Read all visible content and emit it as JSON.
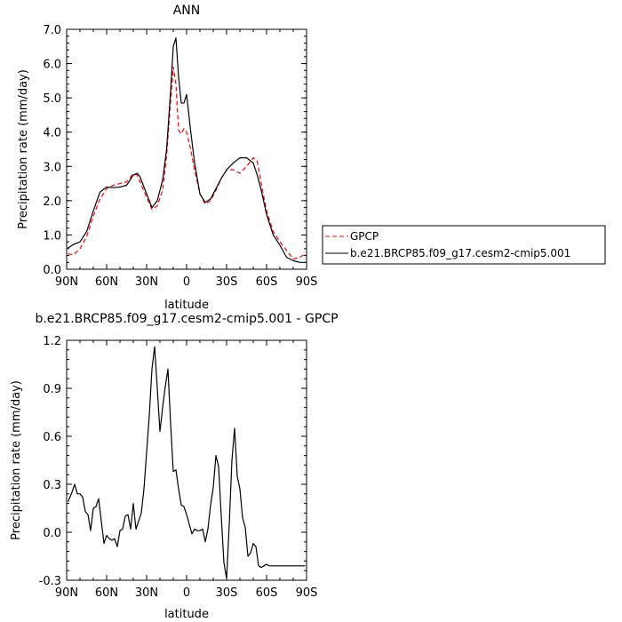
{
  "chart_data": [
    {
      "type": "line",
      "title": "ANN",
      "xlabel": "latitude",
      "ylabel": "Precipitation rate (mm/day)",
      "x_axis": "latitude",
      "xlim": [
        90,
        -90
      ],
      "ylim": [
        0,
        7
      ],
      "xtick_values": [
        90,
        60,
        30,
        0,
        -30,
        -60,
        -90
      ],
      "xtick_labels": [
        "90N",
        "60N",
        "30N",
        "0",
        "30S",
        "60S",
        "90S"
      ],
      "ytick_values": [
        0,
        1,
        2,
        3,
        4,
        5,
        6,
        7
      ],
      "ytick_labels": [
        "0.0",
        "1.0",
        "2.0",
        "3.0",
        "4.0",
        "5.0",
        "6.0",
        "7.0"
      ],
      "legend": {
        "placement": "right"
      },
      "series": [
        {
          "name": "GPCP",
          "color": "#ff0000",
          "dash": "dashed",
          "x": [
            89,
            85,
            80,
            75,
            70,
            65,
            60,
            55,
            50,
            45,
            40,
            37,
            35,
            30,
            26,
            22,
            18,
            15,
            12,
            10,
            8,
            6,
            4,
            2,
            0,
            -3,
            -6,
            -10,
            -14,
            -18,
            -22,
            -26,
            -30,
            -35,
            -40,
            -45,
            -50,
            -53,
            -56,
            -60,
            -65,
            -70,
            -75,
            -80,
            -85,
            -89
          ],
          "y": [
            0.45,
            0.42,
            0.6,
            0.95,
            1.55,
            2.05,
            2.35,
            2.45,
            2.5,
            2.55,
            2.78,
            2.75,
            2.55,
            2.1,
            1.75,
            1.85,
            2.3,
            3.3,
            4.9,
            5.9,
            5.4,
            4.05,
            3.95,
            4.1,
            4.0,
            3.5,
            2.9,
            2.2,
            1.9,
            2.0,
            2.3,
            2.65,
            2.9,
            2.9,
            2.8,
            3.0,
            3.25,
            3.15,
            2.5,
            1.7,
            1.1,
            0.8,
            0.55,
            0.3,
            0.35,
            0.45
          ]
        },
        {
          "name": "b.e21.BRCP85.f09_g17.cesm2-cmip5.001",
          "color": "#000000",
          "dash": "solid",
          "x": [
            89,
            85,
            80,
            75,
            70,
            65,
            60,
            55,
            50,
            45,
            40,
            37,
            35,
            30,
            26,
            22,
            18,
            15,
            12,
            10,
            8,
            6,
            4,
            2,
            0,
            -3,
            -6,
            -10,
            -14,
            -18,
            -22,
            -26,
            -30,
            -35,
            -40,
            -45,
            -50,
            -53,
            -56,
            -60,
            -65,
            -70,
            -75,
            -80,
            -85,
            -89
          ],
          "y": [
            0.62,
            0.72,
            0.8,
            1.1,
            1.7,
            2.25,
            2.4,
            2.38,
            2.4,
            2.45,
            2.75,
            2.8,
            2.7,
            2.2,
            1.8,
            2.0,
            2.6,
            3.5,
            5.2,
            6.5,
            6.75,
            5.6,
            4.85,
            4.85,
            5.1,
            4.05,
            3.1,
            2.2,
            1.95,
            2.05,
            2.35,
            2.65,
            2.9,
            3.1,
            3.25,
            3.25,
            3.1,
            2.75,
            2.3,
            1.6,
            1.0,
            0.7,
            0.35,
            0.25,
            0.2,
            0.2
          ]
        }
      ]
    },
    {
      "type": "line",
      "title": "b.e21.BRCP85.f09_g17.cesm2-cmip5.001 - GPCP",
      "xlabel": "latitude",
      "ylabel": "Precipitation rate (mm/day)",
      "x_axis": "latitude",
      "xlim": [
        90,
        -90
      ],
      "ylim": [
        -0.3,
        1.2
      ],
      "xtick_values": [
        90,
        60,
        30,
        0,
        -30,
        -60,
        -90
      ],
      "xtick_labels": [
        "90N",
        "60N",
        "30N",
        "0",
        "30S",
        "60S",
        "90S"
      ],
      "ytick_values": [
        -0.3,
        0,
        0.3,
        0.6,
        0.9,
        1.2
      ],
      "ytick_labels": [
        "-0.3",
        "0.0",
        "0.3",
        "0.6",
        "0.9",
        "1.2"
      ],
      "series": [
        {
          "color": "#000000",
          "dash": "solid",
          "x": [
            89,
            86,
            84,
            82,
            80,
            78,
            76,
            74,
            72,
            70,
            68,
            66,
            64,
            62,
            60,
            58,
            56,
            54,
            52,
            50,
            48,
            46,
            44,
            42,
            40,
            38,
            36,
            34,
            32,
            30,
            28,
            26,
            24,
            22,
            20,
            18,
            16,
            14,
            12,
            10,
            8,
            6,
            4,
            2,
            0,
            -2,
            -4,
            -6,
            -8,
            -10,
            -12,
            -14,
            -16,
            -18,
            -20,
            -22,
            -24,
            -26,
            -28,
            -30,
            -32,
            -34,
            -36,
            -38,
            -40,
            -42,
            -44,
            -46,
            -48,
            -50,
            -52,
            -54,
            -56,
            -58,
            -60,
            -62,
            -64,
            -66,
            -68,
            -70,
            -72,
            -74,
            -76,
            -78,
            -80,
            -82,
            -84,
            -86,
            -88,
            -89
          ],
          "y": [
            0.19,
            0.25,
            0.3,
            0.24,
            0.24,
            0.22,
            0.13,
            0.11,
            0.01,
            0.15,
            0.16,
            0.21,
            0.07,
            -0.07,
            -0.02,
            -0.04,
            -0.05,
            -0.04,
            -0.09,
            0.01,
            0.02,
            0.1,
            0.11,
            0.02,
            0.18,
            0.02,
            0.07,
            0.12,
            0.27,
            0.5,
            0.73,
            1.02,
            1.16,
            0.9,
            0.63,
            0.78,
            0.91,
            1.02,
            0.68,
            0.38,
            0.39,
            0.27,
            0.17,
            0.16,
            0.11,
            0.05,
            -0.01,
            0.02,
            0.01,
            0.01,
            0.02,
            -0.06,
            0.02,
            0.17,
            0.28,
            0.48,
            0.41,
            0.1,
            -0.19,
            -0.29,
            0.05,
            0.45,
            0.65,
            0.35,
            0.27,
            0.09,
            0.03,
            -0.15,
            -0.13,
            -0.07,
            -0.09,
            -0.21,
            -0.22,
            -0.21,
            -0.2,
            -0.21,
            -0.21,
            -0.21,
            -0.21,
            -0.21,
            -0.21,
            -0.21,
            -0.21,
            -0.21,
            -0.21,
            -0.21,
            -0.21,
            -0.21,
            -0.21,
            -0.21
          ]
        }
      ]
    }
  ]
}
